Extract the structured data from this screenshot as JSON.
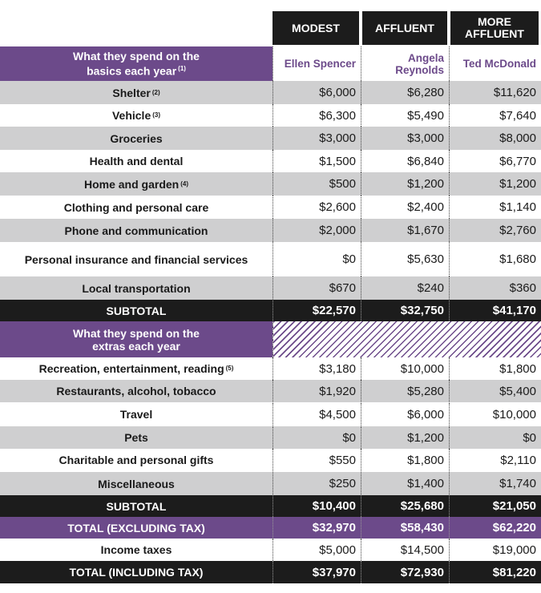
{
  "colors": {
    "accent_purple": "#6c4a8a",
    "dark": "#1c1c1c",
    "band_gray": "#cfcfd0"
  },
  "headers": {
    "col1": "MODEST",
    "col2": "AFFLUENT",
    "col3": "MORE AFFLUENT"
  },
  "section1": {
    "title": "What they spend on the basics each year",
    "note": "(1)",
    "names": [
      "Ellen Spencer",
      "Angela Reynolds",
      "Ted McDonald"
    ]
  },
  "section2": {
    "title": "What they spend on the extras each year"
  },
  "chart_data": {
    "type": "table",
    "columns": [
      "MODEST",
      "AFFLUENT",
      "MORE AFFLUENT"
    ],
    "people": [
      "Ellen Spencer",
      "Angela Reynolds",
      "Ted McDonald"
    ],
    "basics": [
      {
        "label": "Shelter",
        "note": "(2)",
        "values": [
          "$6,000",
          "$6,280",
          "$11,620"
        ]
      },
      {
        "label": "Vehicle",
        "note": "(3)",
        "values": [
          "$6,300",
          "$5,490",
          "$7,640"
        ]
      },
      {
        "label": "Groceries",
        "note": "",
        "values": [
          "$3,000",
          "$3,000",
          "$8,000"
        ]
      },
      {
        "label": "Health and dental",
        "note": "",
        "values": [
          "$1,500",
          "$6,840",
          "$6,770"
        ]
      },
      {
        "label": "Home and garden",
        "note": "(4)",
        "values": [
          "$500",
          "$1,200",
          "$1,200"
        ]
      },
      {
        "label": "Clothing and personal care",
        "note": "",
        "values": [
          "$2,600",
          "$2,400",
          "$1,140"
        ]
      },
      {
        "label": "Phone and communication",
        "note": "",
        "values": [
          "$2,000",
          "$1,670",
          "$2,760"
        ]
      },
      {
        "label": "Personal insurance and financial services",
        "note": "",
        "values": [
          "$0",
          "$5,630",
          "$1,680"
        ]
      },
      {
        "label": "Local transportation",
        "note": "",
        "values": [
          "$670",
          "$240",
          "$360"
        ]
      }
    ],
    "subtotal1": {
      "label": "SUBTOTAL",
      "values": [
        "$22,570",
        "$32,750",
        "$41,170"
      ]
    },
    "extras": [
      {
        "label": "Recreation, entertainment, reading",
        "note": "(5)",
        "values": [
          "$3,180",
          "$10,000",
          "$1,800"
        ]
      },
      {
        "label": "Restaurants, alcohol, tobacco",
        "note": "",
        "values": [
          "$1,920",
          "$5,280",
          "$5,400"
        ]
      },
      {
        "label": "Travel",
        "note": "",
        "values": [
          "$4,500",
          "$6,000",
          "$10,000"
        ]
      },
      {
        "label": "Pets",
        "note": "",
        "values": [
          "$0",
          "$1,200",
          "$0"
        ]
      },
      {
        "label": "Charitable and personal gifts",
        "note": "",
        "values": [
          "$550",
          "$1,800",
          "$2,110"
        ]
      },
      {
        "label": "Miscellaneous",
        "note": "",
        "values": [
          "$250",
          "$1,400",
          "$1,740"
        ]
      }
    ],
    "subtotal2": {
      "label": "SUBTOTAL",
      "values": [
        "$10,400",
        "$25,680",
        "$21,050"
      ]
    },
    "total_excl": {
      "label": "TOTAL (EXCLUDING TAX)",
      "values": [
        "$32,970",
        "$58,430",
        "$62,220"
      ]
    },
    "income_taxes": {
      "label": "Income taxes",
      "values": [
        "$5,000",
        "$14,500",
        "$19,000"
      ]
    },
    "total_incl": {
      "label": "TOTAL (INCLUDING TAX)",
      "values": [
        "$37,970",
        "$72,930",
        "$81,220"
      ]
    }
  }
}
